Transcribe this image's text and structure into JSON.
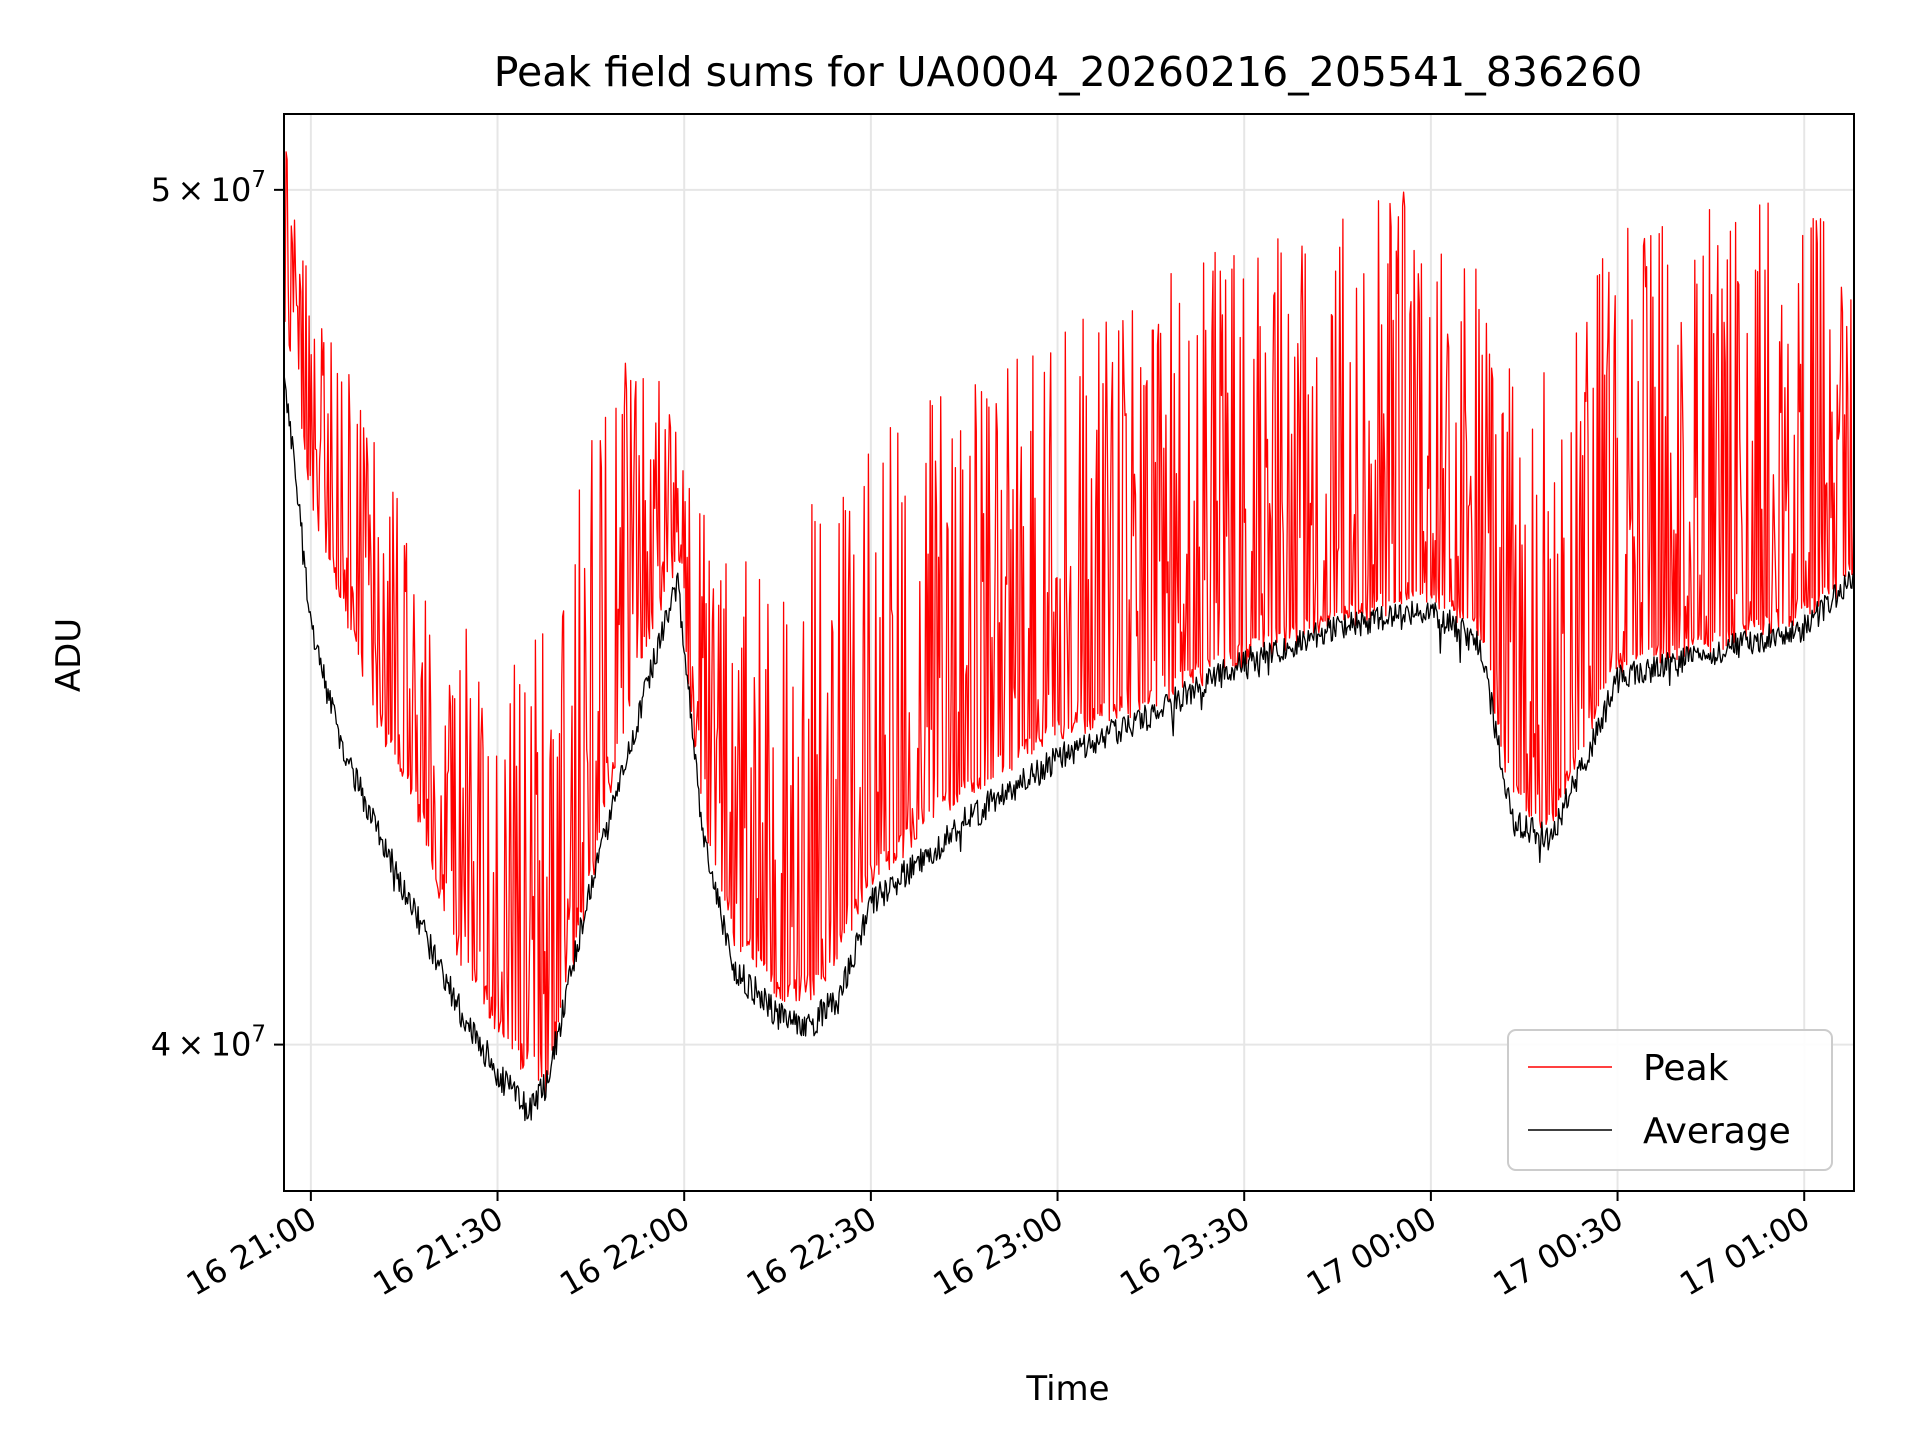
{
  "chart_data": {
    "type": "line",
    "title": "Peak field sums for UA0004_20260216_205541_836260",
    "xlabel": "Time",
    "ylabel": "ADU",
    "yscale": "log",
    "xlim": [
      "2026-02-16 20:55:41",
      "2026-02-17 01:08:00"
    ],
    "ylim": [
      38500000,
      51000000
    ],
    "x_ticks": [
      "16 21:00",
      "16 21:30",
      "16 22:00",
      "16 22:30",
      "16 23:00",
      "16 23:30",
      "17 00:00",
      "17 00:30",
      "17 01:00"
    ],
    "y_ticks": [
      {
        "value": 50000000,
        "mantissa": "5",
        "base": "10",
        "exp": "7"
      },
      {
        "value": 40000000,
        "mantissa": "4",
        "base": "10",
        "exp": "7"
      }
    ],
    "grid": true,
    "legend_position": "lower right",
    "series": [
      {
        "name": "Peak",
        "color": "#ff0000",
        "x": [
          "2026-02-16 20:55:41",
          "2026-02-16 21:00",
          "2026-02-16 21:10",
          "2026-02-16 21:17",
          "2026-02-16 21:23",
          "2026-02-16 21:32",
          "2026-02-16 21:38",
          "2026-02-16 21:45",
          "2026-02-16 21:52",
          "2026-02-16 21:59",
          "2026-02-16 22:02",
          "2026-02-16 22:08",
          "2026-02-16 22:15",
          "2026-02-16 22:22",
          "2026-02-16 22:30",
          "2026-02-16 22:45",
          "2026-02-16 23:00",
          "2026-02-16 23:15",
          "2026-02-16 23:30",
          "2026-02-16 23:45",
          "2026-02-17 00:00",
          "2026-02-17 00:08",
          "2026-02-17 00:13",
          "2026-02-17 00:19",
          "2026-02-17 00:25",
          "2026-02-17 00:30",
          "2026-02-17 00:45",
          "2026-02-17 01:00",
          "2026-02-17 01:08"
        ],
        "baseline": [
          48500000,
          46200000,
          43700000,
          42600000,
          41100000,
          40000000,
          39600000,
          41800000,
          44100000,
          45500000,
          42800000,
          41200000,
          40600000,
          40600000,
          41800000,
          42800000,
          43400000,
          43800000,
          44300000,
          44700000,
          45000000,
          44600000,
          42700000,
          42400000,
          43400000,
          44200000,
          44400000,
          44800000,
          45200000
        ],
        "spike_max": [
          51000000,
          48700000,
          47000000,
          45500000,
          44800000,
          44300000,
          44700000,
          46800000,
          48200000,
          47200000,
          46400000,
          45400000,
          45700000,
          46300000,
          47000000,
          47600000,
          48200000,
          48800000,
          49400000,
          49900000,
          50000000,
          49200000,
          47700000,
          47800000,
          48900000,
          49500000,
          49800000,
          49900000,
          49600000
        ]
      },
      {
        "name": "Average",
        "color": "#000000",
        "x": [
          "2026-02-16 20:55:41",
          "2026-02-16 20:58",
          "2026-02-16 21:00",
          "2026-02-16 21:05",
          "2026-02-16 21:12",
          "2026-02-16 21:18",
          "2026-02-16 21:23",
          "2026-02-16 21:30",
          "2026-02-16 21:35",
          "2026-02-16 21:38",
          "2026-02-16 21:45",
          "2026-02-16 21:52",
          "2026-02-16 21:57",
          "2026-02-16 21:59",
          "2026-02-16 22:03",
          "2026-02-16 22:08",
          "2026-02-16 22:15",
          "2026-02-16 22:20",
          "2026-02-16 22:25",
          "2026-02-16 22:30",
          "2026-02-16 22:45",
          "2026-02-16 23:00",
          "2026-02-16 23:15",
          "2026-02-16 23:30",
          "2026-02-16 23:45",
          "2026-02-17 00:00",
          "2026-02-17 00:08",
          "2026-02-17 00:13",
          "2026-02-17 00:19",
          "2026-02-17 00:25",
          "2026-02-17 00:30",
          "2026-02-17 00:45",
          "2026-02-17 01:00",
          "2026-02-17 01:08"
        ],
        "y": [
          47600000,
          46100000,
          44600000,
          43200000,
          42100000,
          41200000,
          40500000,
          39700000,
          39300000,
          39600000,
          41700000,
          43400000,
          44700000,
          45100000,
          42200000,
          40800000,
          40300000,
          40200000,
          40500000,
          41500000,
          42400000,
          43100000,
          43600000,
          44200000,
          44600000,
          44800000,
          44400000,
          42400000,
          42200000,
          43100000,
          44000000,
          44300000,
          44600000,
          45200000
        ],
        "noise_amplitude": 160000
      }
    ]
  }
}
